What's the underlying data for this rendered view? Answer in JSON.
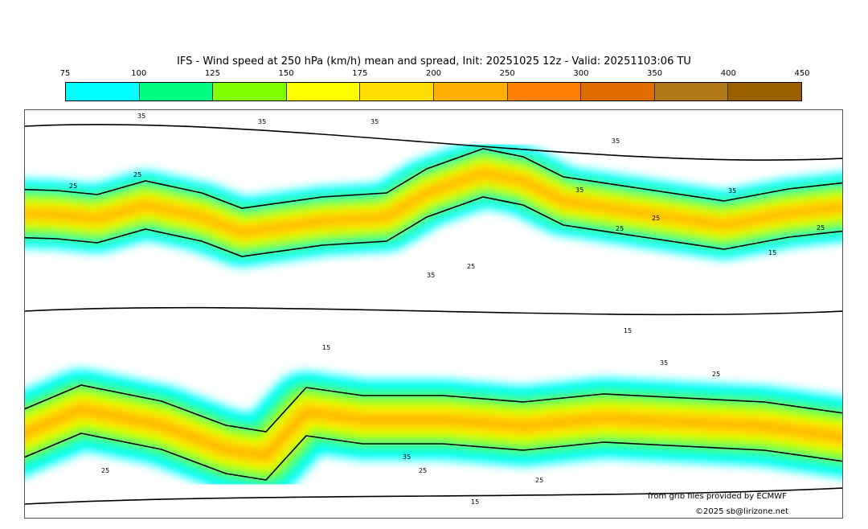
{
  "title": "IFS - Wind speed at 250 hPa (km/h) mean and spread, Init: 20251025 12z - Valid: 20251103:06 TU",
  "colorbar": {
    "ticks": [
      "75",
      "100",
      "125",
      "150",
      "175",
      "200",
      "250",
      "300",
      "350",
      "400",
      "450"
    ],
    "colors": [
      "#00ffff",
      "#00ff80",
      "#80ff00",
      "#ffff00",
      "#ffdc00",
      "#ffb000",
      "#ff8000",
      "#e06c00",
      "#b07818",
      "#9a6000"
    ]
  },
  "contour_labels": [
    "35",
    "35",
    "35",
    "25",
    "25",
    "35",
    "35",
    "25",
    "25",
    "35",
    "15",
    "25",
    "15",
    "15",
    "35",
    "25",
    "35",
    "25",
    "35",
    "25",
    "25",
    "25",
    "15"
  ],
  "credits": {
    "source": "from grib files provided by ECMWF",
    "copyright": "©2025 sb@lirizone.net"
  }
}
